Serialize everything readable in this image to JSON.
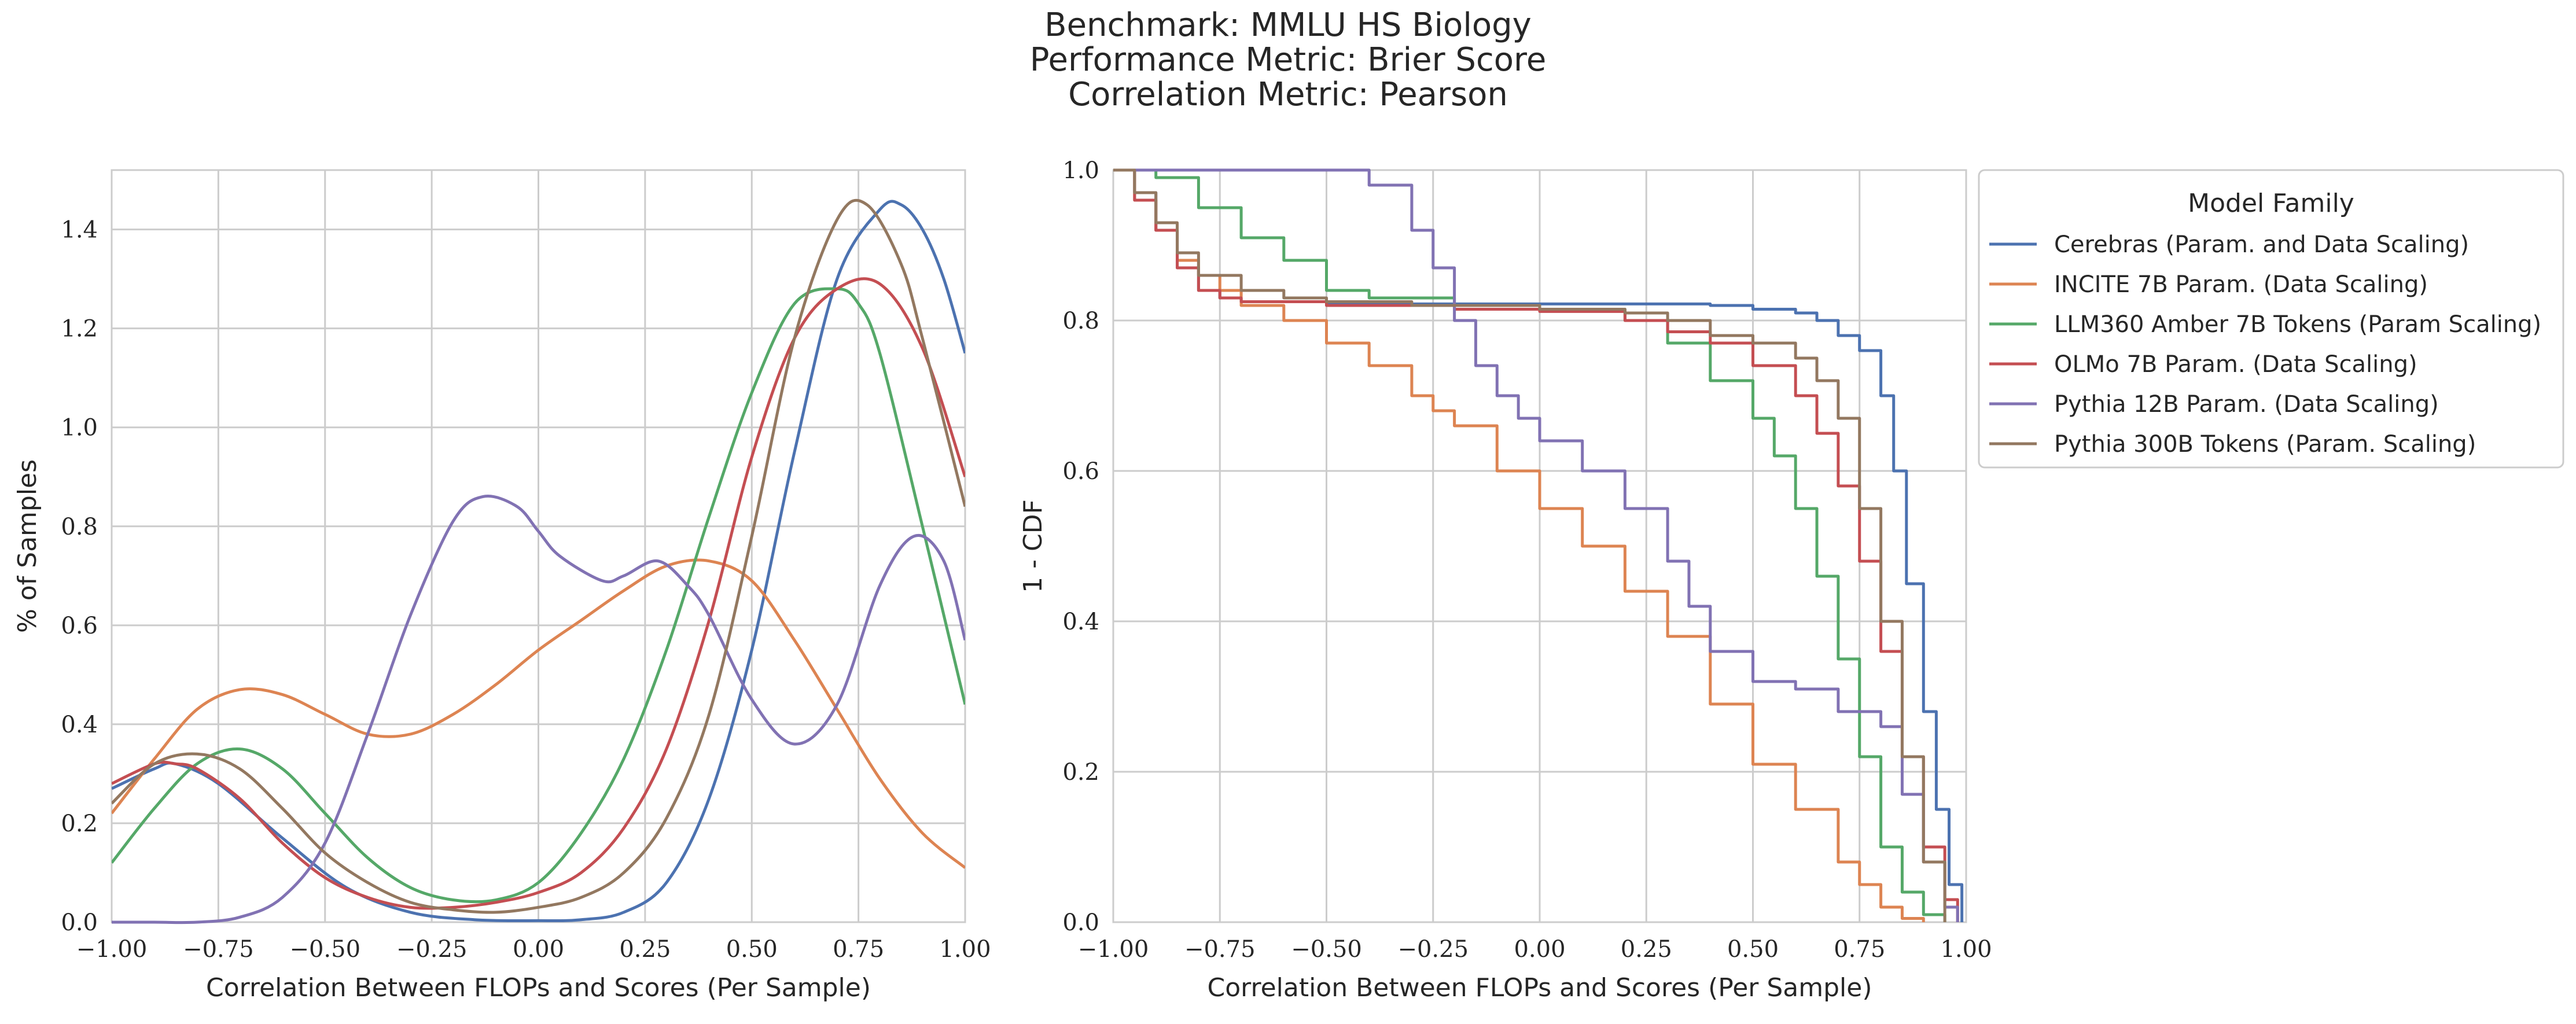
{
  "title_lines": [
    "Benchmark: MMLU HS Biology",
    "Performance Metric: Brier Score",
    "Correlation Metric: Pearson"
  ],
  "legend": {
    "title": "Model Family",
    "placement": "outside-right"
  },
  "chart_data": [
    {
      "type": "line",
      "kind": "density",
      "xlabel": "Correlation Between FLOPs and Scores (Per Sample)",
      "ylabel": "% of Samples",
      "xlim": [
        -1.0,
        1.0
      ],
      "ylim": [
        0.0,
        1.52
      ],
      "xticks": [
        -1.0,
        -0.75,
        -0.5,
        -0.25,
        0.0,
        0.25,
        0.5,
        0.75,
        1.0
      ],
      "xtick_labels": [
        "−1.00",
        "−0.75",
        "−0.50",
        "−0.25",
        "0.00",
        "0.25",
        "0.50",
        "0.75",
        "1.00"
      ],
      "yticks": [
        0.0,
        0.2,
        0.4,
        0.6,
        0.8,
        1.0,
        1.2,
        1.4
      ],
      "ytick_labels": [
        "0.0",
        "0.2",
        "0.4",
        "0.6",
        "0.8",
        "1.0",
        "1.2",
        "1.4"
      ],
      "grid": true,
      "series": [
        {
          "name": "Cerebras (Param. and Data Scaling)",
          "color": "#4c72b0",
          "x": [
            -1.0,
            -0.9,
            -0.85,
            -0.75,
            -0.6,
            -0.45,
            -0.3,
            -0.15,
            0.0,
            0.1,
            0.2,
            0.3,
            0.4,
            0.5,
            0.6,
            0.7,
            0.8,
            0.85,
            0.9,
            0.95,
            1.0
          ],
          "y": [
            0.27,
            0.31,
            0.32,
            0.28,
            0.17,
            0.07,
            0.02,
            0.005,
            0.003,
            0.005,
            0.02,
            0.08,
            0.25,
            0.55,
            0.95,
            1.3,
            1.44,
            1.45,
            1.4,
            1.3,
            1.15
          ]
        },
        {
          "name": "INCITE 7B Param. (Data Scaling)",
          "color": "#dd8452",
          "x": [
            -1.0,
            -0.9,
            -0.8,
            -0.7,
            -0.6,
            -0.5,
            -0.4,
            -0.3,
            -0.2,
            -0.1,
            0.0,
            0.1,
            0.2,
            0.3,
            0.4,
            0.5,
            0.6,
            0.7,
            0.8,
            0.9,
            1.0
          ],
          "y": [
            0.22,
            0.33,
            0.43,
            0.47,
            0.46,
            0.42,
            0.38,
            0.38,
            0.42,
            0.48,
            0.55,
            0.61,
            0.67,
            0.72,
            0.73,
            0.69,
            0.57,
            0.43,
            0.29,
            0.18,
            0.11
          ]
        },
        {
          "name": "LLM360 Amber 7B Tokens (Param Scaling)",
          "color": "#55a868",
          "x": [
            -1.0,
            -0.9,
            -0.8,
            -0.7,
            -0.6,
            -0.5,
            -0.4,
            -0.3,
            -0.2,
            -0.1,
            0.0,
            0.1,
            0.2,
            0.3,
            0.4,
            0.5,
            0.6,
            0.7,
            0.75,
            0.8,
            0.9,
            1.0
          ],
          "y": [
            0.12,
            0.23,
            0.32,
            0.35,
            0.31,
            0.22,
            0.13,
            0.07,
            0.045,
            0.045,
            0.08,
            0.18,
            0.33,
            0.55,
            0.82,
            1.07,
            1.25,
            1.28,
            1.25,
            1.15,
            0.8,
            0.44
          ]
        },
        {
          "name": "OLMo 7B Param. (Data Scaling)",
          "color": "#c44e52",
          "x": [
            -1.0,
            -0.9,
            -0.85,
            -0.8,
            -0.7,
            -0.6,
            -0.5,
            -0.4,
            -0.3,
            -0.2,
            -0.1,
            0.0,
            0.1,
            0.2,
            0.3,
            0.4,
            0.5,
            0.6,
            0.7,
            0.8,
            0.9,
            1.0
          ],
          "y": [
            0.28,
            0.32,
            0.32,
            0.31,
            0.25,
            0.16,
            0.09,
            0.05,
            0.03,
            0.03,
            0.04,
            0.06,
            0.1,
            0.19,
            0.35,
            0.61,
            0.94,
            1.18,
            1.28,
            1.29,
            1.16,
            0.9
          ]
        },
        {
          "name": "Pythia 12B Param. (Data Scaling)",
          "color": "#8172b3",
          "x": [
            -1.0,
            -0.9,
            -0.8,
            -0.7,
            -0.6,
            -0.5,
            -0.4,
            -0.3,
            -0.2,
            -0.13,
            -0.05,
            0.0,
            0.05,
            0.15,
            0.2,
            0.28,
            0.35,
            0.4,
            0.5,
            0.6,
            0.7,
            0.8,
            0.88,
            0.95,
            1.0
          ],
          "y": [
            0.0,
            0.0,
            0.0,
            0.01,
            0.05,
            0.16,
            0.38,
            0.62,
            0.81,
            0.86,
            0.84,
            0.79,
            0.74,
            0.69,
            0.7,
            0.73,
            0.68,
            0.62,
            0.45,
            0.36,
            0.44,
            0.68,
            0.78,
            0.73,
            0.57
          ]
        },
        {
          "name": "Pythia 300B Tokens (Param. Scaling)",
          "color": "#937860",
          "x": [
            -1.0,
            -0.9,
            -0.8,
            -0.7,
            -0.6,
            -0.5,
            -0.4,
            -0.3,
            -0.2,
            -0.1,
            0.0,
            0.1,
            0.2,
            0.3,
            0.4,
            0.5,
            0.6,
            0.7,
            0.77,
            0.85,
            0.9,
            1.0
          ],
          "y": [
            0.24,
            0.32,
            0.34,
            0.31,
            0.23,
            0.14,
            0.08,
            0.04,
            0.025,
            0.02,
            0.03,
            0.05,
            0.1,
            0.21,
            0.42,
            0.78,
            1.18,
            1.42,
            1.45,
            1.33,
            1.18,
            0.84
          ]
        }
      ]
    },
    {
      "type": "line",
      "kind": "step",
      "xlabel": "Correlation Between FLOPs and Scores (Per Sample)",
      "ylabel": "1 - CDF",
      "xlim": [
        -1.0,
        1.0
      ],
      "ylim": [
        0.0,
        1.0
      ],
      "xticks": [
        -1.0,
        -0.75,
        -0.5,
        -0.25,
        0.0,
        0.25,
        0.5,
        0.75,
        1.0
      ],
      "xtick_labels": [
        "−1.00",
        "−0.75",
        "−0.50",
        "−0.25",
        "0.00",
        "0.25",
        "0.50",
        "0.75",
        "1.00"
      ],
      "yticks": [
        0.0,
        0.2,
        0.4,
        0.6,
        0.8,
        1.0
      ],
      "ytick_labels": [
        "0.0",
        "0.2",
        "0.4",
        "0.6",
        "0.8",
        "1.0"
      ],
      "grid": true,
      "series": [
        {
          "name": "Cerebras (Param. and Data Scaling)",
          "color": "#4c72b0",
          "x": [
            -1.0,
            -0.95,
            -0.9,
            -0.85,
            -0.8,
            -0.75,
            -0.7,
            -0.5,
            0.0,
            0.4,
            0.5,
            0.6,
            0.65,
            0.7,
            0.75,
            0.8,
            0.83,
            0.86,
            0.9,
            0.93,
            0.96,
            0.99
          ],
          "y": [
            1.0,
            0.97,
            0.92,
            0.87,
            0.84,
            0.83,
            0.825,
            0.822,
            0.822,
            0.82,
            0.815,
            0.81,
            0.8,
            0.78,
            0.76,
            0.7,
            0.6,
            0.45,
            0.28,
            0.15,
            0.05,
            0.0
          ]
        },
        {
          "name": "INCITE 7B Param. (Data Scaling)",
          "color": "#dd8452",
          "x": [
            -1.0,
            -0.95,
            -0.9,
            -0.85,
            -0.8,
            -0.75,
            -0.7,
            -0.6,
            -0.5,
            -0.4,
            -0.3,
            -0.25,
            -0.2,
            -0.1,
            0.0,
            0.1,
            0.2,
            0.3,
            0.4,
            0.5,
            0.6,
            0.7,
            0.75,
            0.8,
            0.85,
            0.9
          ],
          "y": [
            1.0,
            0.96,
            0.92,
            0.88,
            0.86,
            0.84,
            0.82,
            0.8,
            0.77,
            0.74,
            0.7,
            0.68,
            0.66,
            0.6,
            0.55,
            0.5,
            0.44,
            0.38,
            0.29,
            0.21,
            0.15,
            0.08,
            0.05,
            0.02,
            0.005,
            0.0
          ]
        },
        {
          "name": "LLM360 Amber 7B Tokens (Param Scaling)",
          "color": "#55a868",
          "x": [
            -1.0,
            -0.9,
            -0.8,
            -0.7,
            -0.6,
            -0.5,
            -0.4,
            -0.2,
            0.0,
            0.2,
            0.3,
            0.4,
            0.5,
            0.55,
            0.6,
            0.65,
            0.7,
            0.75,
            0.8,
            0.85,
            0.9,
            0.95
          ],
          "y": [
            1.0,
            0.99,
            0.95,
            0.91,
            0.88,
            0.84,
            0.83,
            0.82,
            0.815,
            0.8,
            0.77,
            0.72,
            0.67,
            0.62,
            0.55,
            0.46,
            0.35,
            0.22,
            0.1,
            0.04,
            0.01,
            0.0
          ]
        },
        {
          "name": "OLMo 7B Param. (Data Scaling)",
          "color": "#c44e52",
          "x": [
            -1.0,
            -0.95,
            -0.9,
            -0.85,
            -0.8,
            -0.75,
            -0.7,
            -0.5,
            -0.2,
            0.0,
            0.2,
            0.3,
            0.4,
            0.5,
            0.6,
            0.65,
            0.7,
            0.75,
            0.8,
            0.85,
            0.9,
            0.95,
            0.98
          ],
          "y": [
            1.0,
            0.96,
            0.92,
            0.87,
            0.84,
            0.83,
            0.825,
            0.82,
            0.815,
            0.812,
            0.8,
            0.785,
            0.77,
            0.74,
            0.7,
            0.65,
            0.58,
            0.48,
            0.36,
            0.22,
            0.1,
            0.03,
            0.0
          ]
        },
        {
          "name": "Pythia 12B Param. (Data Scaling)",
          "color": "#8172b3",
          "x": [
            -1.0,
            -0.9,
            -0.8,
            -0.6,
            -0.5,
            -0.4,
            -0.3,
            -0.25,
            -0.2,
            -0.15,
            -0.1,
            -0.05,
            0.0,
            0.1,
            0.2,
            0.3,
            0.35,
            0.4,
            0.5,
            0.6,
            0.7,
            0.8,
            0.85,
            0.9,
            0.95,
            0.98
          ],
          "y": [
            1.0,
            1.0,
            1.0,
            1.0,
            1.0,
            0.98,
            0.92,
            0.87,
            0.8,
            0.74,
            0.7,
            0.67,
            0.64,
            0.6,
            0.55,
            0.48,
            0.42,
            0.36,
            0.32,
            0.31,
            0.28,
            0.26,
            0.17,
            0.08,
            0.02,
            0.0
          ]
        },
        {
          "name": "Pythia 300B Tokens (Param. Scaling)",
          "color": "#937860",
          "x": [
            -1.0,
            -0.95,
            -0.9,
            -0.85,
            -0.8,
            -0.7,
            -0.6,
            -0.5,
            -0.3,
            0.0,
            0.2,
            0.3,
            0.4,
            0.5,
            0.6,
            0.65,
            0.7,
            0.75,
            0.8,
            0.85,
            0.9,
            0.95
          ],
          "y": [
            1.0,
            0.97,
            0.93,
            0.89,
            0.86,
            0.84,
            0.83,
            0.825,
            0.82,
            0.815,
            0.81,
            0.8,
            0.78,
            0.77,
            0.75,
            0.72,
            0.67,
            0.55,
            0.4,
            0.22,
            0.08,
            0.0
          ]
        }
      ]
    }
  ]
}
